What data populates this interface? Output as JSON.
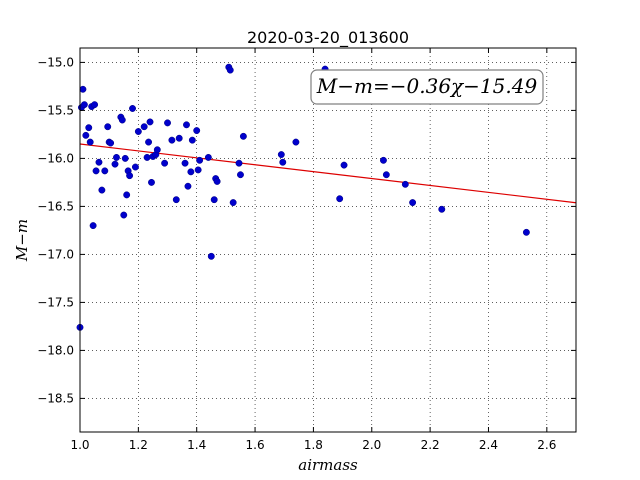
{
  "chart_data": {
    "type": "scatter",
    "title": "2020-03-20_013600",
    "xlabel": "airmass",
    "ylabel": "M−m",
    "xlim": [
      1.0,
      2.7
    ],
    "ylim": [
      -18.85,
      -14.85
    ],
    "y_inverted": true,
    "grid": true,
    "x_ticks": [
      1.0,
      1.2,
      1.4,
      1.6,
      1.8,
      2.0,
      2.2,
      2.4,
      2.6
    ],
    "x_tick_labels": [
      "1.0",
      "1.2",
      "1.4",
      "1.6",
      "1.8",
      "2.0",
      "2.2",
      "2.4",
      "2.6"
    ],
    "y_ticks": [
      -15.0,
      -15.5,
      -16.0,
      -16.5,
      -17.0,
      -17.5,
      -18.0,
      -18.5
    ],
    "y_tick_labels": [
      "−15.0",
      "−15.5",
      "−16.0",
      "−16.5",
      "−17.0",
      "−17.5",
      "−18.0",
      "−18.5"
    ],
    "annotation": "M−m=−0.36χ−15.49",
    "fit": {
      "slope": -0.36,
      "intercept": -15.49,
      "color": "#dd0000"
    },
    "point_color": "#0000cc",
    "series": [
      {
        "points": [
          [
            1.0,
            -17.76
          ],
          [
            1.01,
            -15.28
          ],
          [
            1.005,
            -15.47
          ],
          [
            1.015,
            -15.44
          ],
          [
            1.02,
            -15.76
          ],
          [
            1.03,
            -15.68
          ],
          [
            1.035,
            -15.83
          ],
          [
            1.04,
            -15.46
          ],
          [
            1.045,
            -16.7
          ],
          [
            1.05,
            -15.44
          ],
          [
            1.055,
            -16.13
          ],
          [
            1.065,
            -16.04
          ],
          [
            1.075,
            -16.33
          ],
          [
            1.085,
            -16.13
          ],
          [
            1.095,
            -15.67
          ],
          [
            1.1,
            -15.83
          ],
          [
            1.105,
            -15.84
          ],
          [
            1.12,
            -16.06
          ],
          [
            1.125,
            -15.99
          ],
          [
            1.14,
            -15.57
          ],
          [
            1.145,
            -15.6
          ],
          [
            1.15,
            -16.59
          ],
          [
            1.155,
            -16.0
          ],
          [
            1.16,
            -16.38
          ],
          [
            1.165,
            -16.13
          ],
          [
            1.17,
            -16.18
          ],
          [
            1.18,
            -15.48
          ],
          [
            1.19,
            -16.09
          ],
          [
            1.2,
            -15.72
          ],
          [
            1.22,
            -15.67
          ],
          [
            1.23,
            -15.99
          ],
          [
            1.235,
            -15.83
          ],
          [
            1.24,
            -15.62
          ],
          [
            1.245,
            -16.25
          ],
          [
            1.25,
            -15.98
          ],
          [
            1.26,
            -15.96
          ],
          [
            1.265,
            -15.91
          ],
          [
            1.29,
            -16.05
          ],
          [
            1.3,
            -15.63
          ],
          [
            1.315,
            -15.81
          ],
          [
            1.33,
            -16.43
          ],
          [
            1.34,
            -15.79
          ],
          [
            1.36,
            -16.05
          ],
          [
            1.365,
            -15.65
          ],
          [
            1.37,
            -16.29
          ],
          [
            1.38,
            -16.14
          ],
          [
            1.385,
            -15.81
          ],
          [
            1.4,
            -15.71
          ],
          [
            1.405,
            -16.12
          ],
          [
            1.41,
            -16.02
          ],
          [
            1.44,
            -15.99
          ],
          [
            1.45,
            -17.02
          ],
          [
            1.46,
            -16.43
          ],
          [
            1.465,
            -16.21
          ],
          [
            1.47,
            -16.24
          ],
          [
            1.51,
            -15.05
          ],
          [
            1.515,
            -15.08
          ],
          [
            1.525,
            -16.46
          ],
          [
            1.545,
            -16.05
          ],
          [
            1.55,
            -16.17
          ],
          [
            1.56,
            -15.77
          ],
          [
            1.69,
            -15.96
          ],
          [
            1.695,
            -16.04
          ],
          [
            1.74,
            -15.83
          ],
          [
            1.84,
            -15.07
          ],
          [
            1.89,
            -16.42
          ],
          [
            1.905,
            -16.07
          ],
          [
            2.04,
            -16.02
          ],
          [
            2.05,
            -16.17
          ],
          [
            2.115,
            -16.27
          ],
          [
            2.14,
            -16.46
          ],
          [
            2.24,
            -16.53
          ],
          [
            2.53,
            -16.77
          ]
        ]
      }
    ]
  }
}
